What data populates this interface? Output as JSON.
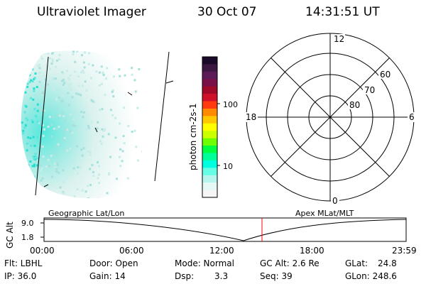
{
  "header": {
    "instrument": "Ultraviolet Imager",
    "date": "30 Oct 07",
    "time": "14:31:51 UT"
  },
  "colorbar": {
    "unit_label": "photon cm-2s-1",
    "ticks": [
      "100",
      "10"
    ],
    "colors": [
      "#1a0a2a",
      "#3a1640",
      "#5e1a58",
      "#7a1048",
      "#a00a28",
      "#d0102a",
      "#ff3a10",
      "#ff8a00",
      "#ffc800",
      "#ffff00",
      "#ccff00",
      "#70ff00",
      "#00ff40",
      "#00ff99",
      "#00ffe0",
      "#66ffe6",
      "#b6f5ee",
      "#e6f8f5",
      "#f6f6f6"
    ]
  },
  "polar_plot": {
    "hour_labels": {
      "top": "12",
      "left": "18",
      "right": "6",
      "bottom": "0"
    },
    "lat_labels": [
      "60",
      "70",
      "80"
    ]
  },
  "timeline": {
    "left_title": "Geographic Lat/Lon",
    "right_title": "Apex MLat/MLT",
    "ylabel": "GC Alt",
    "y_ticks": [
      "9.0",
      "1.8"
    ],
    "x_ticks": [
      "00:00",
      "06:00",
      "12:00",
      "18:00",
      "23:59"
    ]
  },
  "status": {
    "flt": "Flt: LBHL",
    "ip": "IP: 36.0",
    "door": "Door: Open",
    "gain": "Gain: 14",
    "mode": "Mode: Normal",
    "dsp": "Dsp:",
    "dsp_value": "3.3",
    "gc_alt": "GC Alt: 2.6 Re",
    "seq": "Seq: 39",
    "glat": "GLat:",
    "glat_value": "24.8",
    "glon": "GLon: 248.6"
  }
}
